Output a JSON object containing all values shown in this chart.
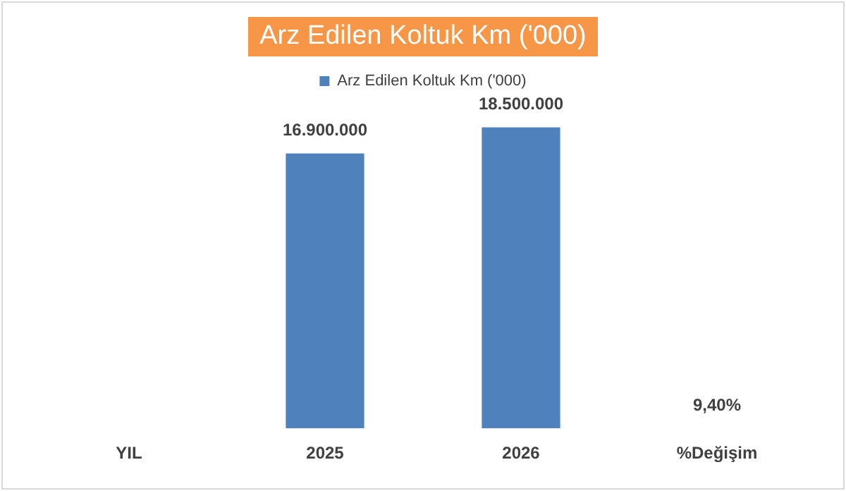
{
  "chart_data": {
    "type": "bar",
    "title": "Arz Edilen Koltuk Km ('000)",
    "categories": [
      "YIL",
      "2025",
      "2026",
      "%Değişim"
    ],
    "series": [
      {
        "name": "Arz Edilen Koltuk Km ('000)",
        "color": "#4f81bd",
        "values": [
          null,
          16900000,
          18500000,
          9.4
        ],
        "value_labels": [
          null,
          "16.900.000",
          "18.500.000",
          "9,40%"
        ]
      }
    ],
    "legend": "top",
    "grid": false
  }
}
